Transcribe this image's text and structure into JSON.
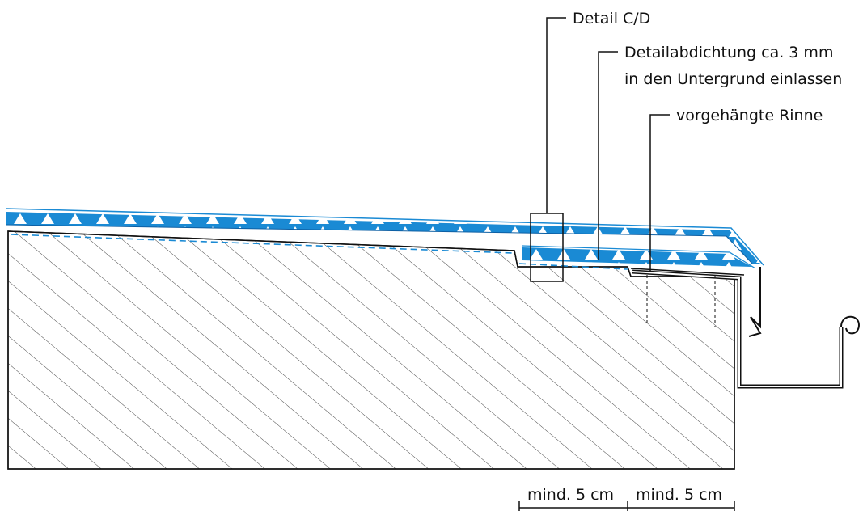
{
  "labels": {
    "detail_cd": "Detail C/D",
    "detailabdichtung_line1": "Detailabdichtung ca. 3 mm",
    "detailabdichtung_line2": "in den Untergrund einlassen",
    "rinne": "vorgehängte Rinne"
  },
  "dimensions": {
    "left": "mind. 5 cm",
    "right": "mind. 5 cm"
  },
  "colors": {
    "membrane": "#1a8ad4",
    "membrane_dark": "#0d5fa3",
    "hatch": "#333333",
    "line": "#111111",
    "gutter": "#111111"
  }
}
